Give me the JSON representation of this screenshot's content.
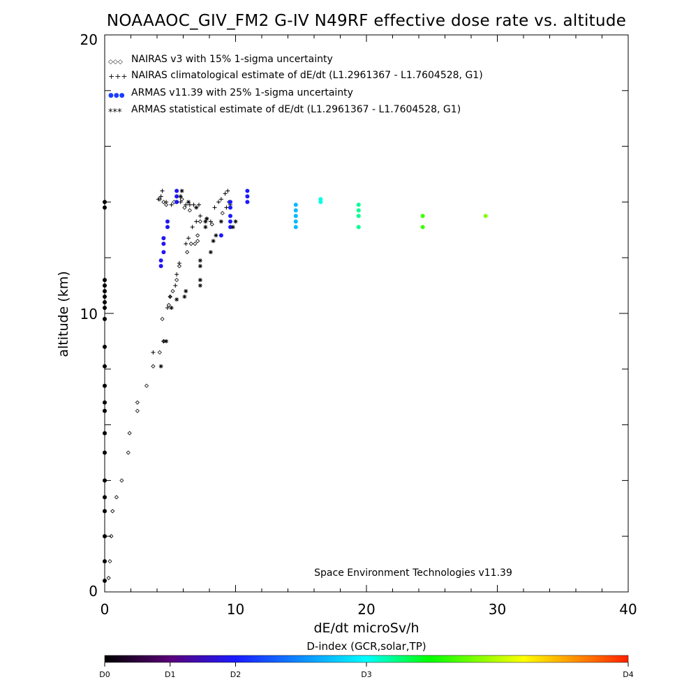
{
  "chart_data": {
    "type": "scatter",
    "title": "NOAAAOC_GIV_FM2 G-IV   N49RF  effective dose rate vs. altitude",
    "xlabel": "dE/dt microSv/h",
    "ylabel": "altitude (km)",
    "xlim": [
      0,
      40
    ],
    "ylim": [
      0,
      20
    ],
    "x_ticks": [
      "0",
      "10",
      "20",
      "30",
      "40"
    ],
    "y_ticks": [
      "0",
      "10",
      "20"
    ],
    "legend_position": "top-left",
    "credit": "Space Environment Technologies v11.39",
    "legend": [
      {
        "symbol": "◇◇◇",
        "label": "NAIRAS v3 with 15% 1-sigma uncertainty"
      },
      {
        "symbol": "+++",
        "label": "NAIRAS climatological estimate of dE/dt (L1.2961367 - L1.7604528, G1)"
      },
      {
        "symbol": "●●●",
        "label": "ARMAS v11.39 with 25% 1-sigma uncertainty"
      },
      {
        "symbol": "***",
        "label": "ARMAS statistical estimate of dE/dt (L1.2961367 - L1.7604528, G1)"
      }
    ],
    "colorbar": {
      "title": "D-index (GCR,solar,TP)",
      "labels": [
        "D0",
        "D1",
        "D2",
        "D3",
        "D4"
      ],
      "label_positions": [
        0,
        0.125,
        0.25,
        0.5,
        1.0
      ],
      "colors": [
        "#000000",
        "#5a0078",
        "#1a1aff",
        "#00ffff",
        "#00ff00",
        "#ffff00",
        "#ff2000"
      ]
    },
    "series": [
      {
        "name": "NAIRAS v3 with 15% 1-sigma uncertainty",
        "marker": "diamond",
        "points": [
          [
            0.3,
            0.5
          ],
          [
            0.4,
            1.1
          ],
          [
            0.5,
            2.0
          ],
          [
            0.6,
            2.9
          ],
          [
            0.9,
            3.4
          ],
          [
            1.3,
            4.0
          ],
          [
            1.8,
            5.0
          ],
          [
            1.9,
            5.7
          ],
          [
            2.5,
            6.5
          ],
          [
            2.5,
            6.8
          ],
          [
            3.2,
            7.4
          ],
          [
            3.7,
            8.1
          ],
          [
            4.2,
            8.6
          ],
          [
            4.5,
            9.0
          ],
          [
            4.4,
            9.8
          ],
          [
            4.9,
            10.3
          ],
          [
            5.0,
            10.6
          ],
          [
            5.2,
            10.8
          ],
          [
            5.5,
            11.2
          ],
          [
            5.7,
            11.7
          ],
          [
            6.3,
            12.2
          ],
          [
            6.6,
            12.5
          ],
          [
            7.1,
            12.8
          ],
          [
            7.1,
            12.6
          ],
          [
            6.9,
            12.5
          ],
          [
            4.2,
            14.1
          ],
          [
            4.5,
            14.0
          ],
          [
            4.7,
            13.9
          ],
          [
            5.3,
            14.0
          ],
          [
            5.9,
            14.1
          ],
          [
            6.1,
            13.8
          ],
          [
            6.5,
            13.7
          ],
          [
            7.3,
            13.3
          ],
          [
            8.2,
            13.2
          ],
          [
            9.0,
            13.6
          ],
          [
            9.5,
            14.0
          ]
        ]
      },
      {
        "name": "NAIRAS climatological estimate of dE/dt (L1.2961367 - L1.7604528, G1)",
        "marker": "plus",
        "points": [
          [
            3.7,
            8.6
          ],
          [
            4.5,
            9.0
          ],
          [
            4.8,
            10.2
          ],
          [
            5.0,
            10.6
          ],
          [
            5.4,
            11.0
          ],
          [
            5.5,
            11.4
          ],
          [
            5.7,
            11.8
          ],
          [
            6.2,
            12.5
          ],
          [
            6.4,
            12.7
          ],
          [
            6.7,
            13.1
          ],
          [
            7.0,
            13.3
          ],
          [
            7.3,
            13.5
          ],
          [
            7.8,
            13.4
          ],
          [
            8.1,
            13.3
          ],
          [
            4.1,
            14.1
          ],
          [
            4.3,
            14.2
          ],
          [
            4.4,
            14.4
          ],
          [
            4.7,
            14.0
          ],
          [
            5.1,
            13.9
          ],
          [
            5.8,
            14.0
          ],
          [
            6.2,
            13.9
          ],
          [
            6.5,
            13.9
          ],
          [
            6.8,
            13.9
          ],
          [
            7.2,
            13.9
          ],
          [
            8.4,
            13.8
          ],
          [
            8.7,
            14.0
          ],
          [
            8.9,
            14.1
          ],
          [
            9.2,
            14.3
          ],
          [
            9.4,
            14.4
          ],
          [
            9.3,
            13.8
          ],
          [
            9.6,
            13.9
          ]
        ]
      },
      {
        "name": "ARMAS v11.39 with 25% 1-sigma uncertainty",
        "marker": "dot",
        "points": [
          [
            0.0,
            0.4
          ],
          [
            0.0,
            1.1
          ],
          [
            0.0,
            2.0
          ],
          [
            0.0,
            2.9
          ],
          [
            0.0,
            3.4
          ],
          [
            0.0,
            4.0
          ],
          [
            0.0,
            5.0
          ],
          [
            0.0,
            5.7
          ],
          [
            0.0,
            6.5
          ],
          [
            0.0,
            6.8
          ],
          [
            0.0,
            7.4
          ],
          [
            0.0,
            8.1
          ],
          [
            0.0,
            8.8
          ],
          [
            0.0,
            9.8
          ],
          [
            0.0,
            10.2
          ],
          [
            0.0,
            10.4
          ],
          [
            0.0,
            10.6
          ],
          [
            0.0,
            10.8
          ],
          [
            0.0,
            11.0
          ],
          [
            0.0,
            11.2
          ],
          [
            0.0,
            13.8
          ],
          [
            0.0,
            14.0
          ],
          [
            4.3,
            11.7
          ],
          [
            4.3,
            11.9
          ],
          [
            4.5,
            12.2
          ],
          [
            4.5,
            12.5
          ],
          [
            4.5,
            12.7
          ],
          [
            4.8,
            13.1
          ],
          [
            4.8,
            13.3
          ],
          [
            5.5,
            14.0
          ],
          [
            5.5,
            14.2
          ],
          [
            5.5,
            14.4
          ],
          [
            8.9,
            12.8
          ],
          [
            9.6,
            13.1
          ],
          [
            9.6,
            13.3
          ],
          [
            9.6,
            13.5
          ],
          [
            9.6,
            13.8
          ],
          [
            9.6,
            14.0
          ],
          [
            10.9,
            14.0
          ],
          [
            10.9,
            14.2
          ],
          [
            10.9,
            14.4
          ],
          [
            14.6,
            13.1
          ],
          [
            14.6,
            13.3
          ],
          [
            14.6,
            13.5
          ],
          [
            14.6,
            13.7
          ],
          [
            14.6,
            13.9
          ],
          [
            16.5,
            14.0
          ],
          [
            16.5,
            14.1
          ],
          [
            19.4,
            13.1
          ],
          [
            19.4,
            13.5
          ],
          [
            19.4,
            13.7
          ],
          [
            19.4,
            13.9
          ],
          [
            24.3,
            13.1
          ],
          [
            24.3,
            13.5
          ],
          [
            29.1,
            13.5
          ]
        ],
        "d_index": [
          0,
          0,
          0,
          0,
          0,
          0,
          0,
          0,
          0,
          0,
          0,
          0,
          0,
          0,
          0,
          0,
          0,
          0,
          0,
          0,
          0,
          0,
          0.95,
          0.95,
          0.95,
          0.95,
          0.95,
          0.95,
          0.95,
          0.95,
          0.95,
          0.95,
          1.0,
          1.0,
          1.0,
          1.0,
          1.0,
          1.0,
          1.0,
          1.0,
          1.0,
          1.7,
          1.7,
          1.7,
          1.7,
          1.7,
          2.05,
          2.05,
          2.2,
          2.2,
          2.2,
          2.2,
          2.65,
          2.65,
          2.85
        ]
      },
      {
        "name": "ARMAS statistical estimate of dE/dt (L1.2961367 - L1.7604528, G1)",
        "marker": "asterisk",
        "points": [
          [
            4.3,
            8.1
          ],
          [
            4.7,
            9.0
          ],
          [
            5.1,
            10.2
          ],
          [
            5.5,
            10.5
          ],
          [
            6.1,
            10.6
          ],
          [
            6.2,
            10.8
          ],
          [
            7.3,
            11.0
          ],
          [
            7.3,
            11.2
          ],
          [
            7.3,
            11.7
          ],
          [
            7.3,
            11.9
          ],
          [
            8.1,
            12.2
          ],
          [
            8.3,
            12.6
          ],
          [
            8.5,
            12.8
          ],
          [
            7.7,
            13.1
          ],
          [
            7.7,
            13.3
          ],
          [
            5.8,
            14.2
          ],
          [
            5.9,
            14.4
          ],
          [
            6.4,
            14.0
          ],
          [
            7.0,
            13.8
          ],
          [
            7.8,
            13.4
          ],
          [
            9.8,
            13.1
          ],
          [
            10.0,
            13.3
          ],
          [
            8.9,
            13.3
          ]
        ]
      }
    ]
  }
}
